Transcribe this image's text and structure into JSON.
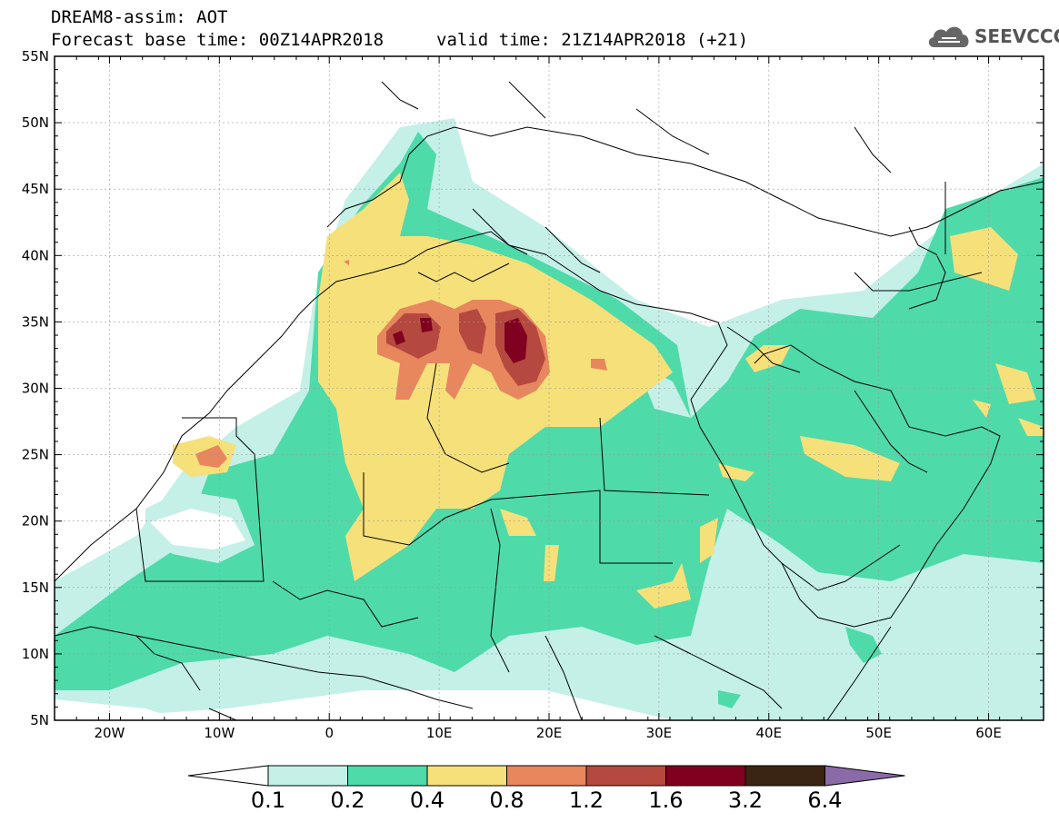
{
  "header": {
    "line1": "DREAM8-assim: AOT",
    "line2": "Forecast base time: 00Z14APR2018",
    "valid": "valid time: 21Z14APR2018 (+21)"
  },
  "logo": {
    "text": "SEEVCCC",
    "icon": "cloud-icon"
  },
  "map": {
    "lon_range": [
      -25,
      65
    ],
    "lat_range": [
      5,
      55
    ],
    "lat_ticks": [
      "5N",
      "10N",
      "15N",
      "20N",
      "25N",
      "30N",
      "35N",
      "40N",
      "45N",
      "50N",
      "55N"
    ],
    "lon_ticks": [
      "20W",
      "10W",
      "0",
      "10E",
      "20E",
      "30E",
      "40E",
      "50E",
      "60E"
    ]
  },
  "colorbar": {
    "labels": [
      "0.1",
      "0.2",
      "0.4",
      "0.8",
      "1.2",
      "1.6",
      "3.2",
      "6.4"
    ],
    "colors": [
      "#c4f0e8",
      "#4fdaaa",
      "#f6e07a",
      "#e8865e",
      "#b5493f",
      "#800020",
      "#3b2412",
      "#8b6aa8"
    ]
  }
}
